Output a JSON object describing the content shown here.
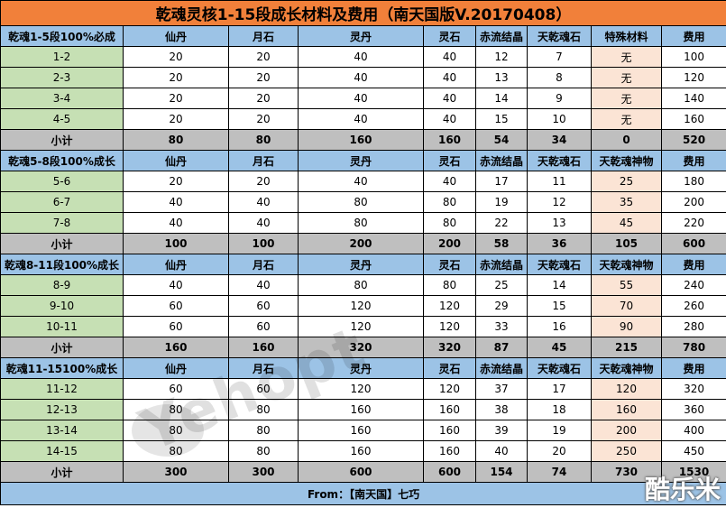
{
  "title": "乾魂灵核1-15段成长材料及费用（南天国版V.20170408）",
  "footer": "From：【南天国】七巧",
  "watermark": "Yehopt",
  "corner_logo": "酷乐米",
  "sections": [
    {
      "header": [
        "乾魂1-5段100%必成",
        "仙丹",
        "月石",
        "灵丹",
        "灵石",
        "赤流结晶",
        "天乾魂石",
        "特殊材料",
        "费用"
      ],
      "rows": [
        [
          "1-2",
          "20",
          "20",
          "40",
          "40",
          "12",
          "7",
          "无",
          "100"
        ],
        [
          "2-3",
          "20",
          "20",
          "40",
          "40",
          "13",
          "8",
          "无",
          "120"
        ],
        [
          "3-4",
          "20",
          "20",
          "40",
          "40",
          "14",
          "9",
          "无",
          "140"
        ],
        [
          "4-5",
          "20",
          "20",
          "40",
          "40",
          "15",
          "10",
          "无",
          "160"
        ]
      ],
      "subtotal": [
        "小计",
        "80",
        "80",
        "160",
        "160",
        "54",
        "34",
        "0",
        "520"
      ]
    },
    {
      "header": [
        "乾魂5-8段100%成长",
        "仙丹",
        "月石",
        "灵丹",
        "灵石",
        "赤流结晶",
        "天乾魂石",
        "天乾魂神物",
        "费用"
      ],
      "rows": [
        [
          "5-6",
          "20",
          "20",
          "40",
          "40",
          "17",
          "11",
          "25",
          "180"
        ],
        [
          "6-7",
          "40",
          "40",
          "80",
          "80",
          "19",
          "12",
          "35",
          "200"
        ],
        [
          "7-8",
          "40",
          "40",
          "80",
          "80",
          "22",
          "13",
          "45",
          "220"
        ]
      ],
      "subtotal": [
        "小计",
        "100",
        "100",
        "200",
        "200",
        "58",
        "36",
        "105",
        "600"
      ]
    },
    {
      "header": [
        "乾魂8-11段100%成长",
        "仙丹",
        "月石",
        "灵丹",
        "灵石",
        "赤流结晶",
        "天乾魂石",
        "天乾魂神物",
        "费用"
      ],
      "rows": [
        [
          "8-9",
          "40",
          "40",
          "80",
          "80",
          "25",
          "14",
          "55",
          "240"
        ],
        [
          "9-10",
          "60",
          "60",
          "120",
          "120",
          "29",
          "15",
          "70",
          "260"
        ],
        [
          "10-11",
          "60",
          "60",
          "120",
          "120",
          "33",
          "16",
          "90",
          "280"
        ]
      ],
      "subtotal": [
        "小计",
        "160",
        "160",
        "320",
        "320",
        "87",
        "45",
        "215",
        "780"
      ]
    },
    {
      "header": [
        "乾魂11-15100%成长",
        "仙丹",
        "月石",
        "灵丹",
        "灵石",
        "赤流结晶",
        "天乾魂石",
        "天乾魂神物",
        "费用"
      ],
      "rows": [
        [
          "11-12",
          "60",
          "60",
          "120",
          "120",
          "37",
          "17",
          "120",
          "320"
        ],
        [
          "12-13",
          "80",
          "80",
          "160",
          "160",
          "38",
          "18",
          "160",
          "360"
        ],
        [
          "13-14",
          "80",
          "80",
          "160",
          "160",
          "39",
          "19",
          "200",
          "400"
        ],
        [
          "14-15",
          "80",
          "80",
          "160",
          "160",
          "40",
          "20",
          "250",
          "450"
        ]
      ],
      "subtotal": [
        "小计",
        "300",
        "300",
        "600",
        "600",
        "154",
        "74",
        "730",
        "1530"
      ]
    }
  ]
}
